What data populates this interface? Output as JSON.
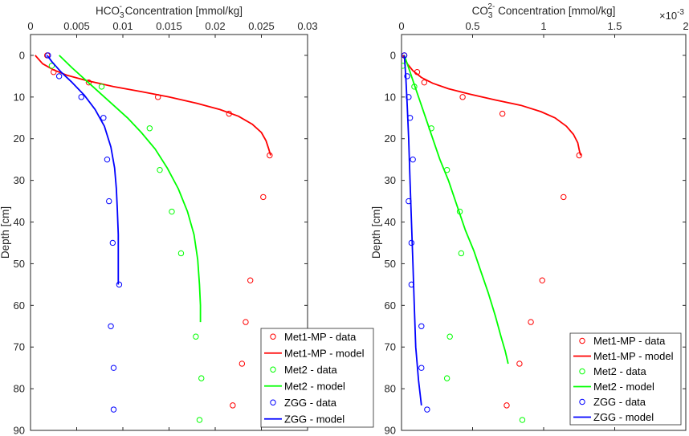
{
  "chart_data": [
    {
      "type": "scatter",
      "title": "HCO3- Concentration [mmol/kg]",
      "title_main": "HCO",
      "title_sub": "3",
      "title_sup": "-",
      "title_rest": " Concentration [mmol/kg]",
      "xlabel": "HCO3- Concentration [mmol/kg]",
      "ylabel": "Depth [cm]",
      "xlim": [
        0,
        0.03
      ],
      "ylim": [
        -5,
        90
      ],
      "y_reversed": true,
      "xticks": [
        0,
        0.005,
        0.01,
        0.015,
        0.02,
        0.025,
        0.03
      ],
      "xtick_labels": [
        "0",
        "0.005",
        "0.01",
        "0.015",
        "0.02",
        "0.025",
        "0.03"
      ],
      "yticks": [
        0,
        10,
        20,
        30,
        40,
        50,
        60,
        70,
        80,
        90
      ],
      "ytick_labels": [
        "0",
        "10",
        "20",
        "30",
        "40",
        "50",
        "60",
        "70",
        "80",
        "90"
      ],
      "exponent_label": "",
      "legend_position": "lower-right",
      "series": [
        {
          "name": "Met1-MP - data",
          "kind": "data",
          "color": "#ff0000",
          "points": [
            [
              0.0018,
              0
            ],
            [
              0.0025,
              4
            ],
            [
              0.0063,
              6.5
            ],
            [
              0.0138,
              10
            ],
            [
              0.0215,
              14
            ],
            [
              0.0259,
              24
            ],
            [
              0.0252,
              34
            ],
            [
              0.0238,
              54
            ],
            [
              0.0233,
              64
            ],
            [
              0.0229,
              74
            ],
            [
              0.0219,
              84
            ]
          ]
        },
        {
          "name": "Met1-MP - model",
          "kind": "model",
          "color": "#ff0000",
          "points": [
            [
              0.0005,
              0
            ],
            [
              0.0013,
              2
            ],
            [
              0.0025,
              3.5
            ],
            [
              0.004,
              4.8
            ],
            [
              0.006,
              6
            ],
            [
              0.009,
              7.5
            ],
            [
              0.012,
              8.7
            ],
            [
              0.015,
              10
            ],
            [
              0.018,
              11.5
            ],
            [
              0.0205,
              13
            ],
            [
              0.0225,
              14.6
            ],
            [
              0.024,
              16.5
            ],
            [
              0.025,
              18.5
            ],
            [
              0.0255,
              20.5
            ],
            [
              0.0258,
              22.5
            ],
            [
              0.026,
              24
            ]
          ]
        },
        {
          "name": "Met2 - data",
          "kind": "data",
          "color": "#00ff00",
          "points": [
            [
              0.0023,
              2.5
            ],
            [
              0.0077,
              7.5
            ],
            [
              0.0129,
              17.5
            ],
            [
              0.014,
              27.5
            ],
            [
              0.0153,
              37.5
            ],
            [
              0.0163,
              47.5
            ],
            [
              0.0179,
              67.5
            ],
            [
              0.0185,
              77.5
            ],
            [
              0.0183,
              87.5
            ]
          ]
        },
        {
          "name": "Met2 - model",
          "kind": "model",
          "color": "#00ff00",
          "points": [
            [
              0.0031,
              0
            ],
            [
              0.0045,
              3
            ],
            [
              0.006,
              6
            ],
            [
              0.0075,
              9
            ],
            [
              0.009,
              12
            ],
            [
              0.0105,
              15
            ],
            [
              0.012,
              18.5
            ],
            [
              0.0135,
              22.5
            ],
            [
              0.0148,
              27
            ],
            [
              0.016,
              32
            ],
            [
              0.017,
              37.5
            ],
            [
              0.0177,
              43
            ],
            [
              0.0181,
              49
            ],
            [
              0.0183,
              55
            ],
            [
              0.0184,
              60
            ],
            [
              0.0184,
              64
            ]
          ]
        },
        {
          "name": "ZGG - data",
          "kind": "data",
          "color": "#0000ff",
          "points": [
            [
              0.0019,
              0
            ],
            [
              0.0031,
              5
            ],
            [
              0.0055,
              10
            ],
            [
              0.0079,
              15
            ],
            [
              0.0083,
              25
            ],
            [
              0.0085,
              35
            ],
            [
              0.0089,
              45
            ],
            [
              0.0096,
              55
            ],
            [
              0.0087,
              65
            ],
            [
              0.009,
              75
            ],
            [
              0.009,
              85
            ]
          ]
        },
        {
          "name": "ZGG - model",
          "kind": "model",
          "color": "#0000ff",
          "points": [
            [
              0.0018,
              0
            ],
            [
              0.0023,
              1.5
            ],
            [
              0.0033,
              4
            ],
            [
              0.0045,
              6.5
            ],
            [
              0.0058,
              9.5
            ],
            [
              0.007,
              13
            ],
            [
              0.008,
              17
            ],
            [
              0.0087,
              22
            ],
            [
              0.0091,
              27
            ],
            [
              0.0093,
              32
            ],
            [
              0.0094,
              37
            ],
            [
              0.0095,
              43
            ],
            [
              0.0095,
              49
            ],
            [
              0.0095,
              55
            ]
          ]
        }
      ]
    },
    {
      "type": "scatter",
      "title": "CO3 2- Concentration [mmol/kg]",
      "title_main": "CO",
      "title_sub": "3",
      "title_sup": "2-",
      "title_rest": " Concentration [mmol/kg]",
      "xlabel": "CO3 2- Concentration [mmol/kg]",
      "ylabel": "Depth [cm]",
      "xlim": [
        0,
        2
      ],
      "ylim": [
        -5,
        90
      ],
      "y_reversed": true,
      "xticks": [
        0,
        0.5,
        1,
        1.5,
        2
      ],
      "xtick_labels": [
        "0",
        "0.5",
        "1",
        "1.5",
        "2"
      ],
      "yticks": [
        0,
        10,
        20,
        30,
        40,
        50,
        60,
        70,
        80,
        90
      ],
      "ytick_labels": [
        "0",
        "10",
        "20",
        "30",
        "40",
        "50",
        "60",
        "70",
        "80",
        "90"
      ],
      "exponent_label": "×10",
      "exponent_power": "-3",
      "legend_position": "lower-right",
      "series": [
        {
          "name": "Met1-MP - data",
          "kind": "data",
          "color": "#ff0000",
          "points": [
            [
              0.02,
              0
            ],
            [
              0.11,
              4
            ],
            [
              0.16,
              6.5
            ],
            [
              0.43,
              10
            ],
            [
              0.71,
              14
            ],
            [
              1.25,
              24
            ],
            [
              1.14,
              34
            ],
            [
              0.99,
              54
            ],
            [
              0.91,
              64
            ],
            [
              0.83,
              74
            ],
            [
              0.74,
              84
            ]
          ]
        },
        {
          "name": "Met1-MP - model",
          "kind": "model",
          "color": "#ff0000",
          "points": [
            [
              0.01,
              0
            ],
            [
              0.04,
              2
            ],
            [
              0.08,
              3.7
            ],
            [
              0.14,
              5.3
            ],
            [
              0.22,
              6.7
            ],
            [
              0.33,
              8
            ],
            [
              0.48,
              9.3
            ],
            [
              0.66,
              10.7
            ],
            [
              0.84,
              12
            ],
            [
              0.98,
              13.5
            ],
            [
              1.08,
              15
            ],
            [
              1.16,
              17
            ],
            [
              1.21,
              19
            ],
            [
              1.24,
              21
            ],
            [
              1.25,
              22.7
            ],
            [
              1.26,
              24
            ]
          ]
        },
        {
          "name": "Met2 - data",
          "kind": "data",
          "color": "#00ff00",
          "points": [
            [
              0.01,
              2.5
            ],
            [
              0.09,
              7.5
            ],
            [
              0.21,
              17.5
            ],
            [
              0.32,
              27.5
            ],
            [
              0.41,
              37.5
            ],
            [
              0.42,
              47.5
            ],
            [
              0.34,
              67.5
            ],
            [
              0.32,
              77.5
            ],
            [
              0.85,
              87.5
            ]
          ]
        },
        {
          "name": "Met2 - model",
          "kind": "model",
          "color": "#00ff00",
          "points": [
            [
              0.02,
              0
            ],
            [
              0.05,
              3
            ],
            [
              0.09,
              7
            ],
            [
              0.13,
              11
            ],
            [
              0.17,
              15
            ],
            [
              0.22,
              20
            ],
            [
              0.27,
              25
            ],
            [
              0.33,
              30
            ],
            [
              0.39,
              36
            ],
            [
              0.45,
              42
            ],
            [
              0.51,
              47
            ],
            [
              0.56,
              52
            ],
            [
              0.61,
              57
            ],
            [
              0.66,
              62.5
            ],
            [
              0.7,
              67.5
            ],
            [
              0.73,
              71
            ],
            [
              0.75,
              74
            ]
          ]
        },
        {
          "name": "ZGG - data",
          "kind": "data",
          "color": "#0000ff",
          "points": [
            [
              0.02,
              0
            ],
            [
              0.04,
              5
            ],
            [
              0.05,
              10
            ],
            [
              0.06,
              15
            ],
            [
              0.08,
              25
            ],
            [
              0.05,
              35
            ],
            [
              0.07,
              45
            ],
            [
              0.07,
              55
            ],
            [
              0.14,
              65
            ],
            [
              0.14,
              75
            ],
            [
              0.18,
              85
            ]
          ]
        },
        {
          "name": "ZGG - model",
          "kind": "model",
          "color": "#0000ff",
          "points": [
            [
              0.02,
              0
            ],
            [
              0.03,
              5
            ],
            [
              0.04,
              12
            ],
            [
              0.05,
              20
            ],
            [
              0.06,
              30
            ],
            [
              0.07,
              40
            ],
            [
              0.08,
              50
            ],
            [
              0.09,
              60
            ],
            [
              0.1,
              70
            ],
            [
              0.12,
              78
            ],
            [
              0.14,
              84
            ]
          ]
        }
      ]
    }
  ]
}
